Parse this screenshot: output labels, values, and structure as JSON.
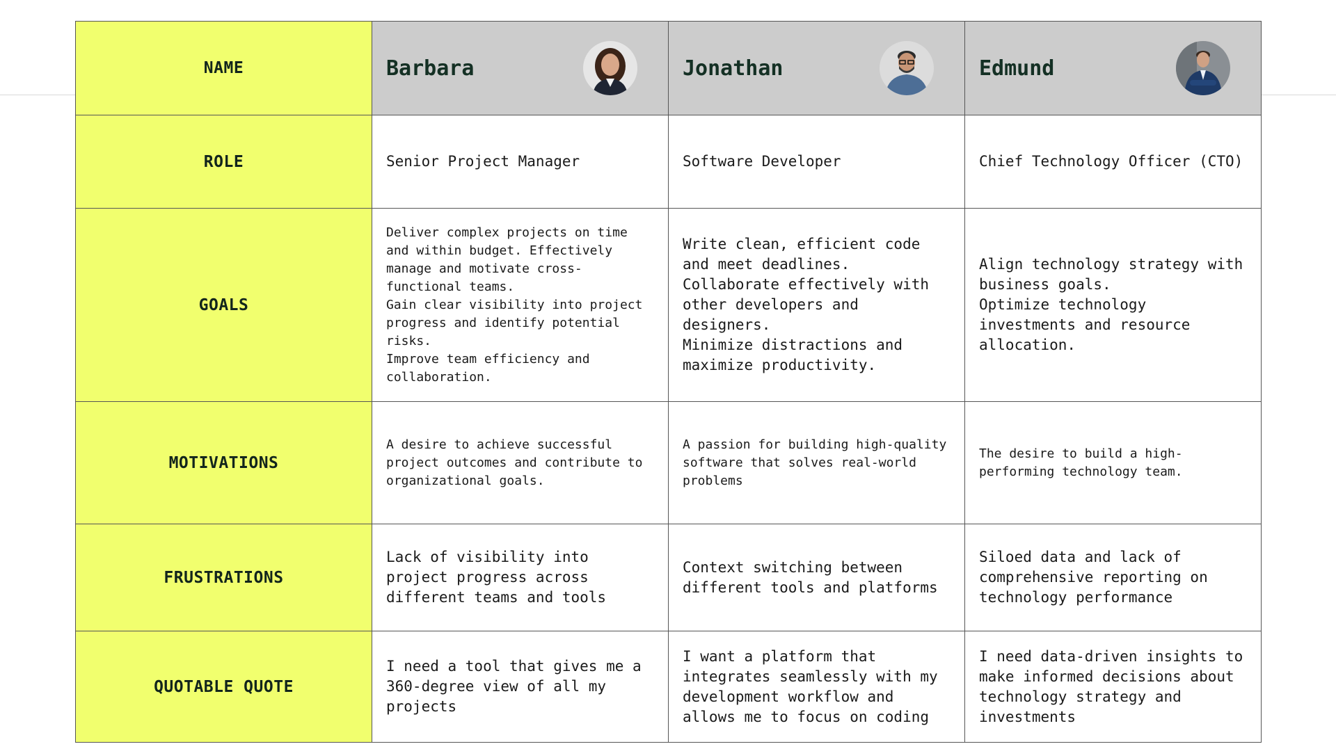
{
  "labels": {
    "name": "NAME",
    "role": "ROLE",
    "goals": "GOALS",
    "motivations": "MOTIVATIONS",
    "frustrations": "FRUSTRATIONS",
    "quote": "QUOTABLE QUOTE"
  },
  "personas": [
    {
      "name": "Barbara",
      "avatar": "portrait-woman-blazer",
      "role": "Senior Project Manager",
      "goals": [
        "Deliver complex projects on time and within budget.  Effectively manage and motivate cross-functional teams.",
        "Gain clear visibility into project progress and identify potential risks.",
        "Improve team efficiency and collaboration."
      ],
      "motivations": "A desire to achieve successful project outcomes and contribute to organizational goals.",
      "frustrations": "Lack of visibility into project progress across different teams and tools",
      "quote": "I need a tool that gives me a 360-degree view of all my projects"
    },
    {
      "name": "Jonathan",
      "avatar": "portrait-man-glasses-denim",
      "role": "Software Developer",
      "goals": [
        "Write clean, efficient code and meet deadlines.",
        "Collaborate effectively with other developers and designers.",
        "Minimize distractions and maximize productivity."
      ],
      "motivations": "A passion for building high-quality software that solves real-world problems",
      "frustrations": "Context switching between different tools and platforms",
      "quote": "I want a platform that integrates seamlessly with my development workflow and allows me to focus on coding"
    },
    {
      "name": "Edmund",
      "avatar": "portrait-man-suit-arms-crossed",
      "role": "Chief Technology Officer (CTO)",
      "goals": [
        "Align technology strategy with business goals.",
        "Optimize technology investments and resource allocation."
      ],
      "motivations": "The desire to build a high-performing technology team.",
      "frustrations": "Siloed data and lack of comprehensive reporting on technology performance",
      "quote": "I need data-driven insights to make informed decisions about technology strategy and investments"
    }
  ],
  "colors": {
    "label_background": "#f1ff6e",
    "header_background": "#cccccc",
    "border": "#555555",
    "name_text": "#143024"
  }
}
